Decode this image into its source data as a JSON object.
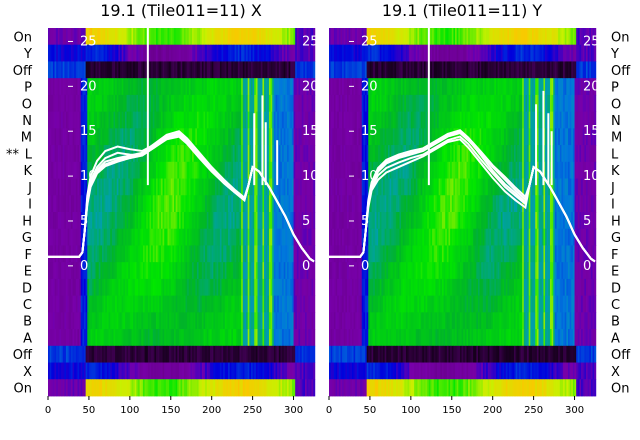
{
  "chart_data": [
    {
      "type": "heatmap",
      "title": "19.1 (Tile011=11) X",
      "row_labels": [
        "On",
        "Y",
        "Off",
        "P",
        "O",
        "N",
        "M",
        "L",
        "K",
        "J",
        "I",
        "H",
        "G",
        "F",
        "E",
        "D",
        "C",
        "B",
        "A",
        "Off",
        "X",
        "On"
      ],
      "marked_row": "L",
      "marker_text": "**",
      "x_ticks": [
        0,
        50,
        100,
        150,
        200,
        250,
        300
      ],
      "xlim": [
        0,
        325
      ],
      "overlay_y_ticks": [
        0,
        5,
        10,
        15,
        20,
        25
      ],
      "overlay_ylim": [
        -14.5,
        26.5
      ],
      "colormap": "nipy_spectral",
      "overlay_series": [
        {
          "x": [
            0,
            38,
            42,
            45,
            48,
            52,
            60,
            70,
            85,
            100,
            115,
            130,
            145,
            160,
            170,
            185,
            200,
            215,
            228,
            240,
            245,
            250,
            258,
            265,
            270,
            278,
            290,
            300,
            310,
            320,
            325
          ],
          "y": [
            1,
            1,
            1.5,
            4,
            7,
            9,
            10.5,
            11.3,
            11.8,
            12.2,
            12.5,
            13.4,
            14.4,
            14.8,
            14,
            12.4,
            10.8,
            9.4,
            8.4,
            7.5,
            9,
            11,
            10.5,
            9.5,
            8.8,
            7.5,
            5.5,
            3.5,
            2,
            0.8,
            0.5
          ]
        },
        {
          "x": [
            0,
            38,
            42,
            45,
            48,
            52,
            60,
            70,
            85,
            100,
            115,
            130,
            145,
            160,
            170,
            185,
            200,
            215,
            228,
            240,
            245,
            250,
            258,
            265,
            270,
            278,
            290,
            300,
            310,
            320,
            325
          ],
          "y": [
            1,
            1,
            1.5,
            4,
            7.5,
            9.5,
            11,
            12,
            12.6,
            12.4,
            12.3,
            13.2,
            14.1,
            14.4,
            13.6,
            12,
            10.5,
            9.2,
            8.2,
            7.3,
            9,
            11,
            10.5,
            9.5,
            8.8,
            7.5,
            5.5,
            3.5,
            2,
            0.8,
            0.5
          ]
        },
        {
          "x": [
            0,
            38,
            42,
            45,
            48,
            52,
            60,
            70,
            85,
            100,
            115,
            130,
            145,
            160,
            170,
            185,
            200,
            215,
            228,
            240,
            245,
            250,
            258,
            265,
            270,
            278,
            290,
            300,
            310,
            320,
            325
          ],
          "y": [
            1,
            1,
            1.5,
            4,
            7.8,
            10,
            11.7,
            12.8,
            13.3,
            13,
            12.8,
            13.5,
            14.3,
            14.7,
            13.9,
            12.3,
            10.7,
            9.3,
            8.3,
            7.4,
            9,
            11,
            10.5,
            9.5,
            8.8,
            7.5,
            5.5,
            3.5,
            2,
            0.8,
            0.5
          ]
        },
        {
          "x": [
            0,
            38,
            42,
            45,
            48,
            52,
            60,
            70,
            85,
            100,
            115,
            130,
            145,
            160,
            170,
            185,
            200,
            215,
            228,
            240,
            245,
            250,
            258,
            265,
            270,
            278,
            290,
            300,
            310,
            320,
            325
          ],
          "y": [
            1,
            1,
            1.5,
            4,
            7,
            9.2,
            10.7,
            11.6,
            12,
            12.3,
            12.6,
            13.6,
            14.6,
            15,
            14.2,
            12.6,
            11,
            9.6,
            8.5,
            7.6,
            9,
            11,
            10.5,
            9.5,
            8.8,
            7.5,
            5.5,
            3.5,
            2,
            0.8,
            0.5
          ]
        },
        {
          "x": [
            0,
            38,
            42,
            45,
            48,
            52,
            60,
            70,
            85,
            100,
            115,
            130,
            145,
            160,
            170,
            185,
            200,
            215,
            228,
            240,
            245,
            250,
            258,
            265,
            270,
            278,
            290,
            300,
            310,
            320,
            325
          ],
          "y": [
            1,
            1,
            1.5,
            4,
            6.8,
            8.8,
            10.3,
            11.1,
            11.6,
            12,
            12.3,
            13.2,
            14.2,
            14.6,
            13.8,
            12.2,
            10.6,
            9.2,
            8.2,
            7.3,
            9,
            11,
            10.5,
            9.5,
            8.8,
            7.5,
            5.5,
            3.5,
            2,
            0.8,
            0.5
          ]
        }
      ],
      "overlay_spikes": [
        {
          "x": 122,
          "y_top": 26.5
        },
        {
          "x": 252,
          "y_top": 17
        },
        {
          "x": 262,
          "y_top": 19
        },
        {
          "x": 266,
          "y_top": 16
        },
        {
          "x": 280,
          "y_top": 14
        }
      ]
    },
    {
      "type": "heatmap",
      "title": "19.1 (Tile011=11) Y",
      "row_labels": [
        "On",
        "Y",
        "Off",
        "P",
        "O",
        "N",
        "M",
        "L",
        "K",
        "J",
        "I",
        "H",
        "G",
        "F",
        "E",
        "D",
        "C",
        "B",
        "A",
        "Off",
        "X",
        "On"
      ],
      "x_ticks": [
        0,
        50,
        100,
        150,
        200,
        250,
        300
      ],
      "xlim": [
        0,
        325
      ],
      "overlay_y_ticks": [
        0,
        5,
        10,
        15,
        20,
        25
      ],
      "overlay_ylim": [
        -14.5,
        26.5
      ],
      "colormap": "nipy_spectral",
      "overlay_series": [
        {
          "x": [
            0,
            38,
            42,
            45,
            48,
            52,
            60,
            70,
            85,
            100,
            115,
            130,
            145,
            160,
            170,
            185,
            200,
            215,
            228,
            240,
            245,
            250,
            258,
            265,
            270,
            278,
            290,
            300,
            310,
            320,
            325
          ],
          "y": [
            1,
            1,
            1.5,
            4,
            7,
            9,
            10.5,
            11.4,
            12,
            12.4,
            12.8,
            13.6,
            14.4,
            14.8,
            14,
            12.6,
            11,
            9.6,
            8.4,
            7.4,
            9,
            11,
            10.5,
            9.5,
            8.8,
            7.5,
            5.5,
            3.5,
            2,
            0.8,
            0.5
          ]
        },
        {
          "x": [
            0,
            38,
            42,
            45,
            48,
            52,
            60,
            70,
            85,
            100,
            115,
            130,
            145,
            160,
            170,
            185,
            200,
            215,
            228,
            240,
            245,
            250,
            258,
            265,
            270,
            278,
            290,
            300,
            310,
            320,
            325
          ],
          "y": [
            1,
            1,
            1.5,
            4,
            6.5,
            8.4,
            9.6,
            10.4,
            11,
            11.6,
            12.2,
            13,
            13.8,
            14.1,
            13.2,
            11.5,
            9.8,
            8.3,
            7.3,
            6.5,
            9,
            11,
            10.5,
            9.5,
            8.8,
            7.5,
            5.5,
            3.5,
            2,
            0.8,
            0.5
          ]
        },
        {
          "x": [
            0,
            38,
            42,
            45,
            48,
            52,
            60,
            70,
            85,
            100,
            115,
            130,
            145,
            160,
            170,
            185,
            200,
            215,
            228,
            240,
            245,
            250,
            258,
            265,
            270,
            278,
            290,
            300,
            310,
            320,
            325
          ],
          "y": [
            1,
            1,
            1.5,
            4,
            7.3,
            9.3,
            10.9,
            11.8,
            12.4,
            12.8,
            13.1,
            13.9,
            14.7,
            15.1,
            14.3,
            12.8,
            11.2,
            9.9,
            8.7,
            7.7,
            9,
            11,
            10.5,
            9.5,
            8.8,
            7.5,
            5.5,
            3.5,
            2,
            0.8,
            0.5
          ]
        },
        {
          "x": [
            0,
            38,
            42,
            45,
            48,
            52,
            60,
            70,
            85,
            100,
            115,
            130,
            145,
            160,
            170,
            185,
            200,
            215,
            228,
            240,
            245,
            250,
            258,
            265,
            270,
            278,
            290,
            300,
            310,
            320,
            325
          ],
          "y": [
            1,
            1,
            1.5,
            4,
            6.8,
            8.7,
            10.1,
            10.9,
            11.5,
            12,
            12.4,
            13.2,
            14,
            14.4,
            13.6,
            11.9,
            10.3,
            8.8,
            7.8,
            6.9,
            9,
            11,
            10.5,
            9.5,
            8.8,
            7.5,
            5.5,
            3.5,
            2,
            0.8,
            0.5
          ]
        },
        {
          "x": [
            0,
            38,
            42,
            45,
            48,
            52,
            60,
            70,
            85,
            100,
            115,
            130,
            145,
            160,
            170,
            185,
            200,
            215,
            228,
            240,
            245,
            250,
            258,
            265,
            270,
            278,
            290,
            300,
            310,
            320,
            325
          ],
          "y": [
            1,
            1,
            1.5,
            4,
            7.1,
            9.1,
            10.7,
            11.6,
            12.2,
            12.6,
            12.9,
            13.7,
            14.5,
            15,
            14.1,
            12.4,
            10.6,
            9.1,
            8.1,
            7.1,
            9,
            11,
            10.5,
            9.5,
            8.8,
            7.5,
            5.5,
            3.5,
            2,
            0.8,
            0.5
          ]
        }
      ],
      "overlay_spikes": [
        {
          "x": 122,
          "y_top": 26.5
        },
        {
          "x": 253,
          "y_top": 18
        },
        {
          "x": 262,
          "y_top": 19.5
        },
        {
          "x": 268,
          "y_top": 17
        },
        {
          "x": 272,
          "y_top": 15
        }
      ]
    }
  ]
}
